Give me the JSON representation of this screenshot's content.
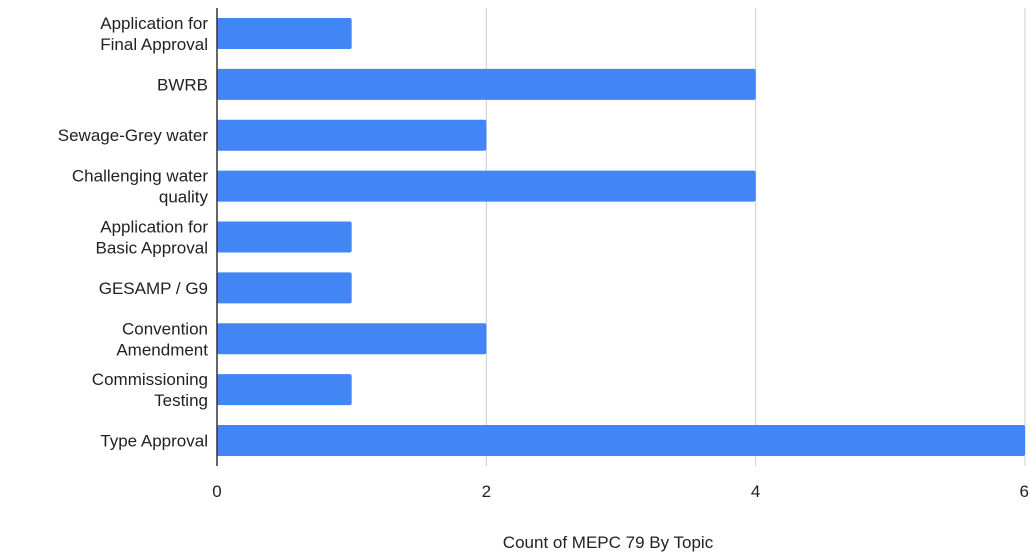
{
  "chart_data": {
    "type": "bar",
    "orientation": "horizontal",
    "categories": [
      "Application for Final Approval",
      "BWRB",
      "Sewage-Grey water",
      "Challenging water quality",
      "Application for Basic Approval",
      "GESAMP / G9",
      "Convention Amendment",
      "Commissioning Testing",
      "Type Approval"
    ],
    "values": [
      1,
      4,
      2,
      4,
      1,
      1,
      2,
      1,
      6
    ],
    "xlabel": "Count of MEPC 79 By Topic",
    "ylabel": "",
    "xlim": [
      0,
      6
    ],
    "xticks": [
      "0",
      "2",
      "4",
      "6"
    ],
    "grid": true,
    "bar_color": "#4285f4",
    "grid_color": "#cccccc",
    "axis_color": "#333333"
  }
}
